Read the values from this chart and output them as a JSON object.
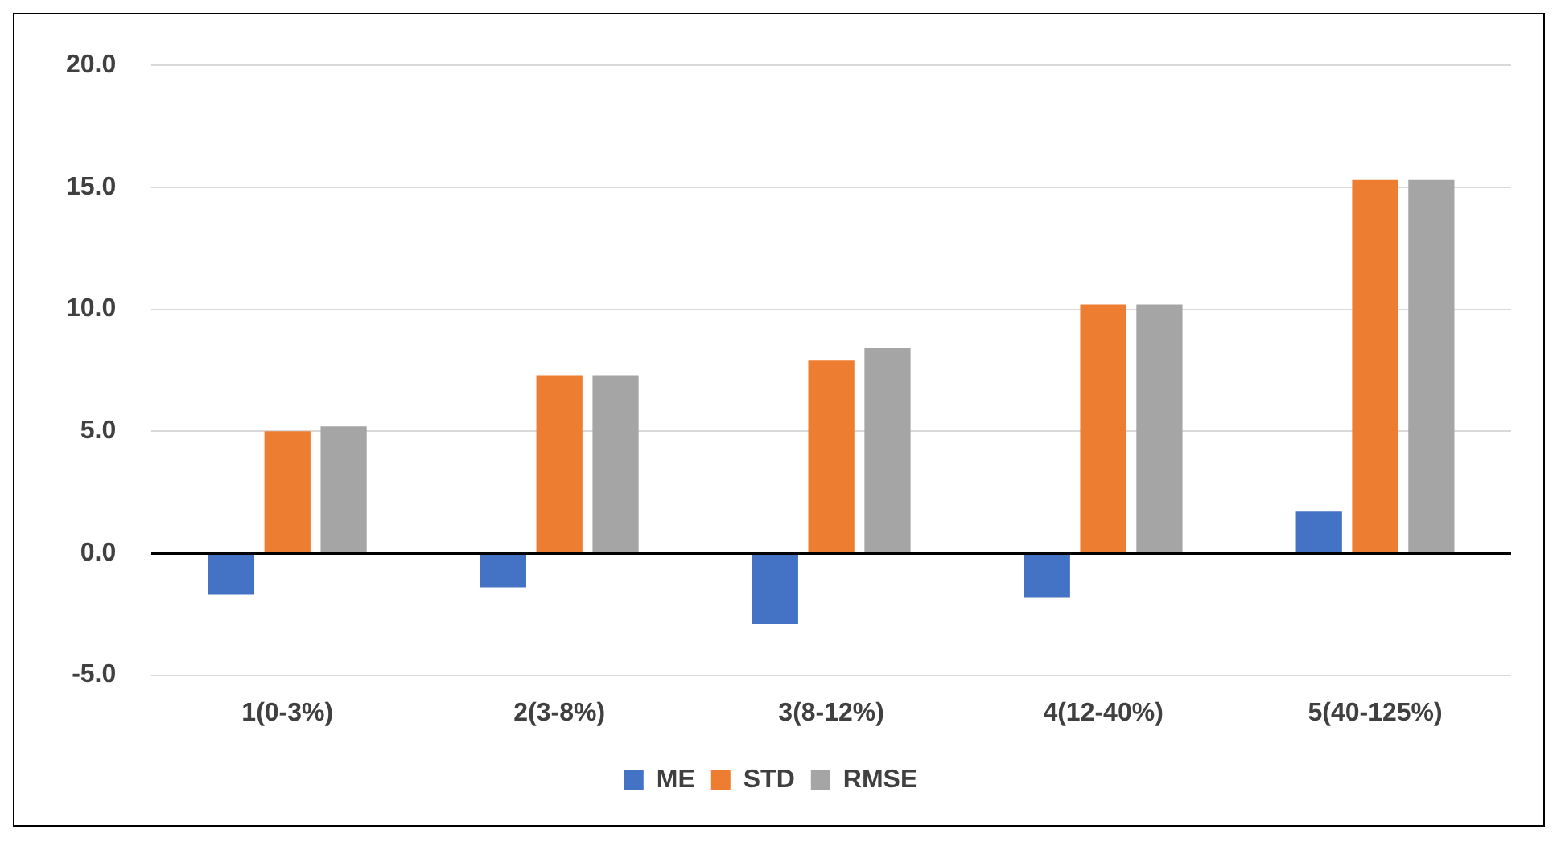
{
  "chart_data": {
    "type": "bar",
    "categories": [
      "1(0-3%)",
      "2(3-8%)",
      "3(8-12%)",
      "4(12-40%)",
      "5(40-125%)"
    ],
    "series": [
      {
        "name": "ME",
        "color": "#4472c4",
        "values": [
          -1.7,
          -1.4,
          -2.9,
          -1.8,
          1.7
        ]
      },
      {
        "name": "STD",
        "color": "#ed7d31",
        "values": [
          5.0,
          7.3,
          7.9,
          10.2,
          15.3
        ]
      },
      {
        "name": "RMSE",
        "color": "#a5a5a5",
        "values": [
          5.2,
          7.3,
          8.4,
          10.2,
          15.3
        ]
      }
    ],
    "ylim": [
      -5,
      20
    ],
    "yticks": [
      {
        "value": -5,
        "label": "-5.0"
      },
      {
        "value": 0,
        "label": "0.0"
      },
      {
        "value": 5,
        "label": "5.0"
      },
      {
        "value": 10,
        "label": "10.0"
      },
      {
        "value": 15,
        "label": "15.0"
      },
      {
        "value": 20,
        "label": "20.0"
      }
    ],
    "grid": "y",
    "legend": "bottom"
  }
}
